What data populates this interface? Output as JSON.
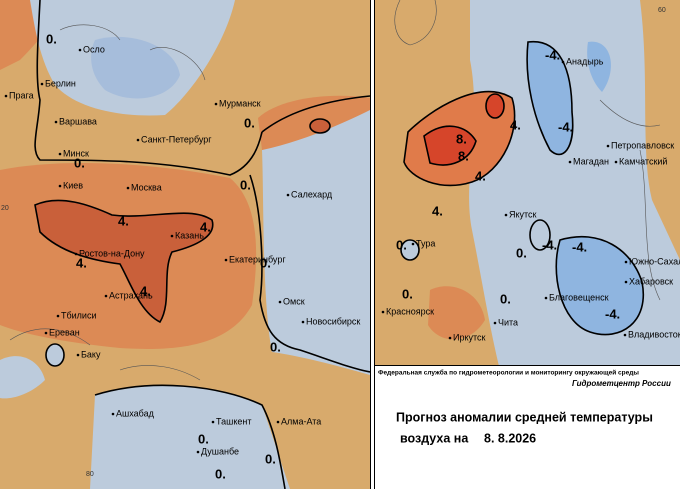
{
  "left_map": {
    "cities": [
      "Осло",
      "Берлин",
      "Прага",
      "Варшава",
      "Мурманск",
      "Санкт-Петербург",
      "Минск",
      "Киев",
      "Москва",
      "Салехард",
      "Казань",
      "Ростов-на-Дону",
      "Екатеринбург",
      "Астрахань",
      "Омск",
      "Новосибирск",
      "Тбилиси",
      "Ереван",
      "Баку",
      "Ашхабад",
      "Ташкент",
      "Алма-Ата",
      "Душанбе"
    ],
    "contour_labels": [
      "0.",
      "0.",
      "0.",
      "0.",
      "0.",
      "0.",
      "0.",
      "4.",
      "4.",
      "4.",
      "4.",
      "0.",
      "0."
    ],
    "grid_labels": [
      "20",
      "80"
    ]
  },
  "right_map": {
    "cities": [
      "Анадырь",
      "Петропавловск",
      "Магадан",
      "Камчатский",
      "Якутск",
      "Тура",
      "Южно-Сахалинск",
      "Хабаровск",
      "Благовещенск",
      "Красноярск",
      "Чита",
      "Иркутск",
      "Владивосток"
    ],
    "contour_labels": [
      "-4.",
      "-4.",
      "4.",
      "8.",
      "8.",
      "4.",
      "4.",
      "0.",
      "0.",
      "-4.",
      "-4.",
      "0.",
      "0.",
      "-4."
    ],
    "grid_labels": [
      "60"
    ]
  },
  "footer": {
    "agency": "Федеральная служба по гидрометеорологии и мониторингу окружающей среды",
    "center": "Гидрометцентр России",
    "title_line1": "Прогноз аномалии средней температуры",
    "title_line2": "воздуха на",
    "date": "8. 8.2026"
  }
}
